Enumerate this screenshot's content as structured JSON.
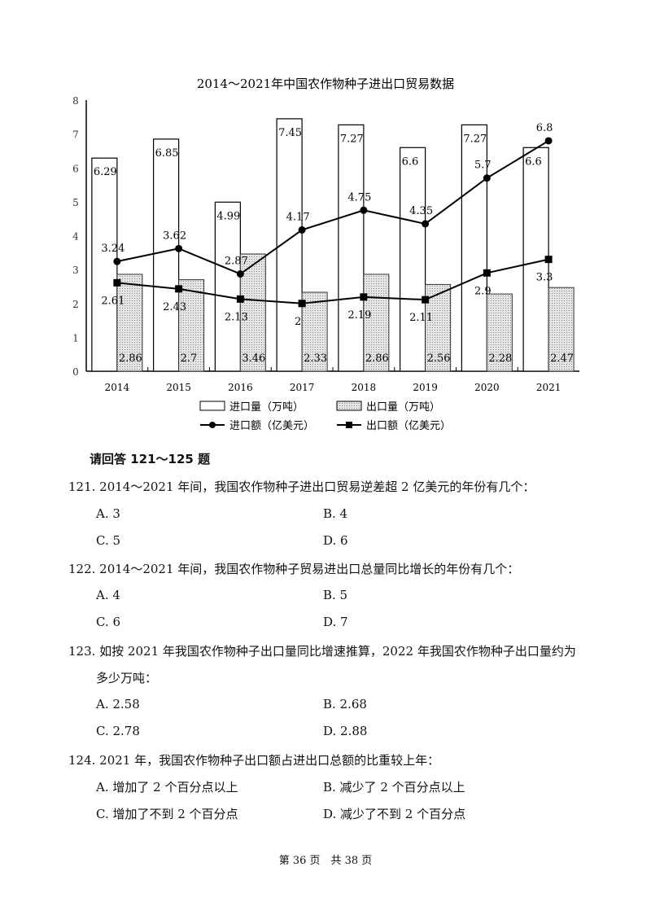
{
  "chart_data": {
    "type": "bar+line",
    "title": "2014～2021年中国农作物种子进出口贸易数据",
    "categories": [
      "2014",
      "2015",
      "2016",
      "2017",
      "2018",
      "2019",
      "2020",
      "2021"
    ],
    "ylim": [
      0,
      8
    ],
    "yticks": [
      "0",
      "1",
      "2",
      "3",
      "4",
      "5",
      "6",
      "7",
      "8"
    ],
    "grid": false,
    "legend_position": "bottom",
    "series": [
      {
        "name": "进口量（万吨）",
        "kind": "bar",
        "fill": "#ffffff",
        "values": [
          6.29,
          6.85,
          4.99,
          7.45,
          7.27,
          6.6,
          7.27,
          6.6
        ],
        "labels": [
          "6.29",
          "6.85",
          "4.99",
          "7.45",
          "7.27",
          "6.6",
          "7.27",
          "6.6"
        ]
      },
      {
        "name": "出口量（万吨）",
        "kind": "bar",
        "fill": "#d9d9d9",
        "values": [
          2.86,
          2.7,
          3.46,
          2.33,
          2.86,
          2.56,
          2.28,
          2.47
        ],
        "labels": [
          "2.86",
          "2.7",
          "3.46",
          "2.33",
          "2.86",
          "2.56",
          "2.28",
          "2.47"
        ]
      },
      {
        "name": "进口额（亿美元）",
        "kind": "line",
        "marker": "circle",
        "values": [
          3.24,
          3.62,
          2.87,
          4.17,
          4.75,
          4.35,
          5.7,
          6.8
        ],
        "labels": [
          "3.24",
          "3.62",
          "2.87",
          "4.17",
          "4.75",
          "4.35",
          "5.7",
          "6.8"
        ]
      },
      {
        "name": "出口额（亿美元）",
        "kind": "line",
        "marker": "square",
        "values": [
          2.61,
          2.43,
          2.13,
          2.0,
          2.19,
          2.11,
          2.9,
          3.3
        ],
        "labels": [
          "2.61",
          "2.43",
          "2.13",
          "2",
          "2.19",
          "2.11",
          "2.9",
          "3.3"
        ]
      }
    ]
  },
  "instruction": "请回答 121～125 题",
  "questions": [
    {
      "stem": "121. 2014～2021 年间，我国农作物种子进出口贸易逆差超 2 亿美元的年份有几个：",
      "options": [
        "A. 3",
        "B. 4",
        "C. 5",
        "D. 6"
      ]
    },
    {
      "stem": "122. 2014～2021 年间，我国农作物种子贸易进出口总量同比增长的年份有几个：",
      "options": [
        "A. 4",
        "B. 5",
        "C. 6",
        "D. 7"
      ]
    },
    {
      "stem": "123. 如按 2021 年我国农作物种子出口量同比增速推算，2022 年我国农作物种子出口量约为",
      "stem2": "多少万吨：",
      "options": [
        "A. 2.58",
        "B. 2.68",
        "C. 2.78",
        "D. 2.88"
      ]
    },
    {
      "stem": "124. 2021 年，我国农作物种子出口额占进出口总额的比重较上年：",
      "options": [
        "A. 增加了 2 个百分点以上",
        "B. 减少了 2 个百分点以上",
        "C. 增加了不到 2 个百分点",
        "D. 减少了不到 2 个百分点"
      ]
    }
  ],
  "footer": "第 36 页　共 38 页"
}
